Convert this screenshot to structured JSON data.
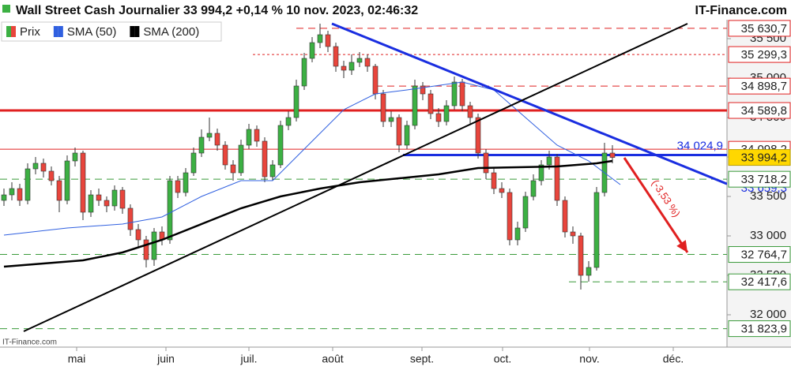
{
  "header": {
    "title": "Wall Street Cash Journalier 33 994,2 +0,14 % 10 nov. 2023, 02:46:32",
    "site": "IT-Finance.com"
  },
  "watermark": "IT-Finance.com",
  "chart_data": {
    "type": "candlestick",
    "candles": {
      "name": "Prix",
      "up_color": "#3cb043",
      "down_color": "#e8453c",
      "x": [
        0,
        1,
        2,
        3,
        4,
        5,
        6,
        7,
        8,
        9,
        10,
        11,
        12,
        13,
        14,
        15,
        16,
        17,
        18,
        19,
        20,
        21,
        22,
        23,
        24,
        25,
        26,
        27,
        28,
        29,
        30,
        31,
        32,
        33,
        34,
        35,
        36,
        37,
        38,
        39,
        40,
        41,
        42,
        43,
        44,
        45,
        46,
        47,
        48,
        49,
        50,
        51,
        52,
        53,
        54,
        55,
        56,
        57,
        58,
        59,
        60,
        61,
        62,
        63,
        64,
        65,
        66,
        67,
        68,
        69,
        70,
        71,
        72,
        73,
        74,
        75,
        76,
        77
      ],
      "open": [
        33450,
        33520,
        33600,
        33450,
        33850,
        33920,
        33820,
        33700,
        33450,
        33950,
        34050,
        33300,
        33520,
        33450,
        33380,
        33580,
        33350,
        33080,
        32950,
        32700,
        33050,
        32950,
        33700,
        33550,
        33800,
        34050,
        34250,
        34300,
        34150,
        33900,
        33800,
        34150,
        34350,
        34200,
        33750,
        33900,
        34400,
        34500,
        34900,
        35250,
        35450,
        35550,
        35400,
        35150,
        35100,
        35200,
        35250,
        35150,
        34800,
        34450,
        34500,
        34150,
        34400,
        34900,
        34800,
        34550,
        34450,
        34650,
        34950,
        34650,
        34500,
        34050,
        33800,
        33600,
        33550,
        32950,
        33100,
        33500,
        33700,
        33900,
        34000,
        33450,
        33050,
        33000,
        32500,
        32600,
        33550,
        34050
      ],
      "high": [
        33600,
        33680,
        33660,
        33920,
        34000,
        33980,
        33880,
        33760,
        34020,
        34120,
        34080,
        33580,
        33600,
        33500,
        33640,
        33620,
        33400,
        33150,
        33000,
        33100,
        33120,
        33760,
        33760,
        33860,
        34120,
        34350,
        34500,
        34360,
        34200,
        33960,
        34220,
        34420,
        34400,
        34250,
        33960,
        34460,
        34580,
        34980,
        35320,
        35520,
        35690,
        35600,
        35450,
        35220,
        35300,
        35330,
        35300,
        35180,
        34850,
        34580,
        34540,
        34460,
        34980,
        34950,
        34850,
        34620,
        34720,
        35020,
        34990,
        34700,
        34550,
        34100,
        33860,
        33680,
        33600,
        33180,
        33560,
        33780,
        33960,
        34080,
        34040,
        33500,
        33120,
        33040,
        32680,
        33620,
        34180,
        34150
      ],
      "low": [
        33380,
        33450,
        33380,
        33400,
        33780,
        33740,
        33640,
        33300,
        33400,
        33880,
        33200,
        33240,
        33380,
        33300,
        33320,
        33280,
        33000,
        32850,
        32600,
        32620,
        32880,
        32900,
        33480,
        33500,
        33760,
        34000,
        34200,
        34080,
        33840,
        33700,
        33760,
        34100,
        34130,
        33680,
        33700,
        33860,
        34340,
        34450,
        34850,
        35200,
        35380,
        35330,
        35080,
        35000,
        35040,
        35140,
        35080,
        34730,
        34380,
        34380,
        34060,
        34100,
        34350,
        34720,
        34480,
        34380,
        34400,
        34600,
        34580,
        34420,
        33980,
        33720,
        33530,
        33480,
        32880,
        32880,
        33050,
        33450,
        33640,
        33840,
        33380,
        32980,
        32900,
        32320,
        32420,
        32560,
        33500,
        33920
      ],
      "close": [
        33520,
        33600,
        33450,
        33850,
        33920,
        33820,
        33700,
        33450,
        33950,
        34050,
        33300,
        33520,
        33450,
        33380,
        33580,
        33350,
        33080,
        32950,
        32700,
        33050,
        32950,
        33700,
        33550,
        33800,
        34050,
        34250,
        34300,
        34150,
        33900,
        33800,
        34150,
        34350,
        34200,
        33750,
        33900,
        34400,
        34500,
        34900,
        35250,
        35450,
        35550,
        35400,
        35150,
        35100,
        35200,
        35250,
        35150,
        34800,
        34450,
        34500,
        34150,
        34400,
        34900,
        34800,
        34550,
        34450,
        34650,
        34950,
        34650,
        34500,
        34050,
        33800,
        33600,
        33550,
        32950,
        33100,
        33500,
        33700,
        33900,
        34000,
        33450,
        33050,
        33000,
        32500,
        32600,
        33550,
        34050,
        33994.2
      ]
    },
    "series": [
      {
        "name": "SMA (50)",
        "color": "#3060e0",
        "x": [
          0,
          8,
          15,
          20,
          25,
          30,
          34,
          37,
          40,
          43,
          47,
          51,
          58,
          62,
          66,
          70,
          74,
          76,
          78
        ],
        "values": [
          33010,
          33100,
          33150,
          33240,
          33500,
          33700,
          33700,
          34000,
          34300,
          34600,
          34800,
          34850,
          34950,
          34850,
          34500,
          34150,
          33950,
          33800,
          33650
        ]
      },
      {
        "name": "SMA (200)",
        "color": "#000000",
        "x": [
          0,
          10,
          15,
          20,
          25,
          30,
          35,
          40,
          45,
          50,
          55,
          60,
          65,
          70,
          75,
          77
        ],
        "values": [
          32610,
          32690,
          32790,
          32950,
          33150,
          33350,
          33500,
          33600,
          33680,
          33730,
          33780,
          33860,
          33870,
          33880,
          33920,
          33950
        ]
      }
    ],
    "xlim": [
      -0.5,
      91.5
    ],
    "xticks": [
      {
        "value": 9.2,
        "label": "mai"
      },
      {
        "value": 20.5,
        "label": "juin"
      },
      {
        "value": 31,
        "label": "juil."
      },
      {
        "value": 41.6,
        "label": "août"
      },
      {
        "value": 52.9,
        "label": "sept."
      },
      {
        "value": 63.1,
        "label": "oct."
      },
      {
        "value": 74.1,
        "label": "nov."
      },
      {
        "value": 84.7,
        "label": "déc."
      }
    ],
    "ylim": [
      31590,
      35740
    ],
    "yticks": [
      {
        "value": 32000,
        "label": "32 000"
      },
      {
        "value": 32500,
        "label": "32 500"
      },
      {
        "value": 33000,
        "label": "33 000"
      },
      {
        "value": 33500,
        "label": "33 500"
      },
      {
        "value": 34000,
        "label": "34 000"
      },
      {
        "value": 34500,
        "label": "34 500"
      },
      {
        "value": 35000,
        "label": "35 000"
      },
      {
        "value": 35500,
        "label": "35 500"
      }
    ],
    "levels": [
      {
        "value": 35630.7,
        "label": "35 630,7",
        "color": "#e02020",
        "style": "dashed",
        "from": 37
      },
      {
        "value": 35299.3,
        "label": "35 299,3",
        "color": "#e02020",
        "style": "dotted",
        "from": 31.5
      },
      {
        "value": 34898.7,
        "label": "34 898,7",
        "color": "#e02020",
        "style": "dashed",
        "from": 47
      },
      {
        "value": 34589.8,
        "label": "34 589,8",
        "color": "#e02020",
        "style": "thick",
        "from": -0.5
      },
      {
        "value": 34098.2,
        "label": "34 098,2",
        "color": "#e02020",
        "style": "solid",
        "from": -0.5
      },
      {
        "value": 33718.2,
        "label": "33 718,2",
        "color": "#3a9a3a",
        "style": "dashed",
        "from": -0.5
      },
      {
        "value": 32764.7,
        "label": "32 764,7",
        "color": "#3a9a3a",
        "style": "dashed",
        "from": -0.5
      },
      {
        "value": 32417.6,
        "label": "32 417,6",
        "color": "#3a9a3a",
        "style": "dashed",
        "from": 71.5
      },
      {
        "value": 31823.9,
        "label": "31 823,9",
        "color": "#3a9a3a",
        "style": "dashed",
        "from": -0.5
      }
    ],
    "support": {
      "value": 34024.9,
      "label": "34 024,9",
      "color": "#1a2ee0",
      "from": 50.5
    },
    "last": {
      "value": 33994.2,
      "label": "33 994,2",
      "color": "#ffd700"
    },
    "trendlines": [
      {
        "color": "#1a2ee0",
        "x": [
          41.5,
          91.5
        ],
        "values": [
          35690,
          33659.3
        ],
        "label": "33 659,3"
      },
      {
        "color": "#000000",
        "x": [
          2.5,
          86.5
        ],
        "values": [
          31790,
          35690
        ]
      }
    ],
    "arrow": {
      "color": "#e02020",
      "x": [
        78.5,
        86.5
      ],
      "values": [
        33990,
        32790
      ],
      "label": "(-3,53 %)"
    }
  }
}
